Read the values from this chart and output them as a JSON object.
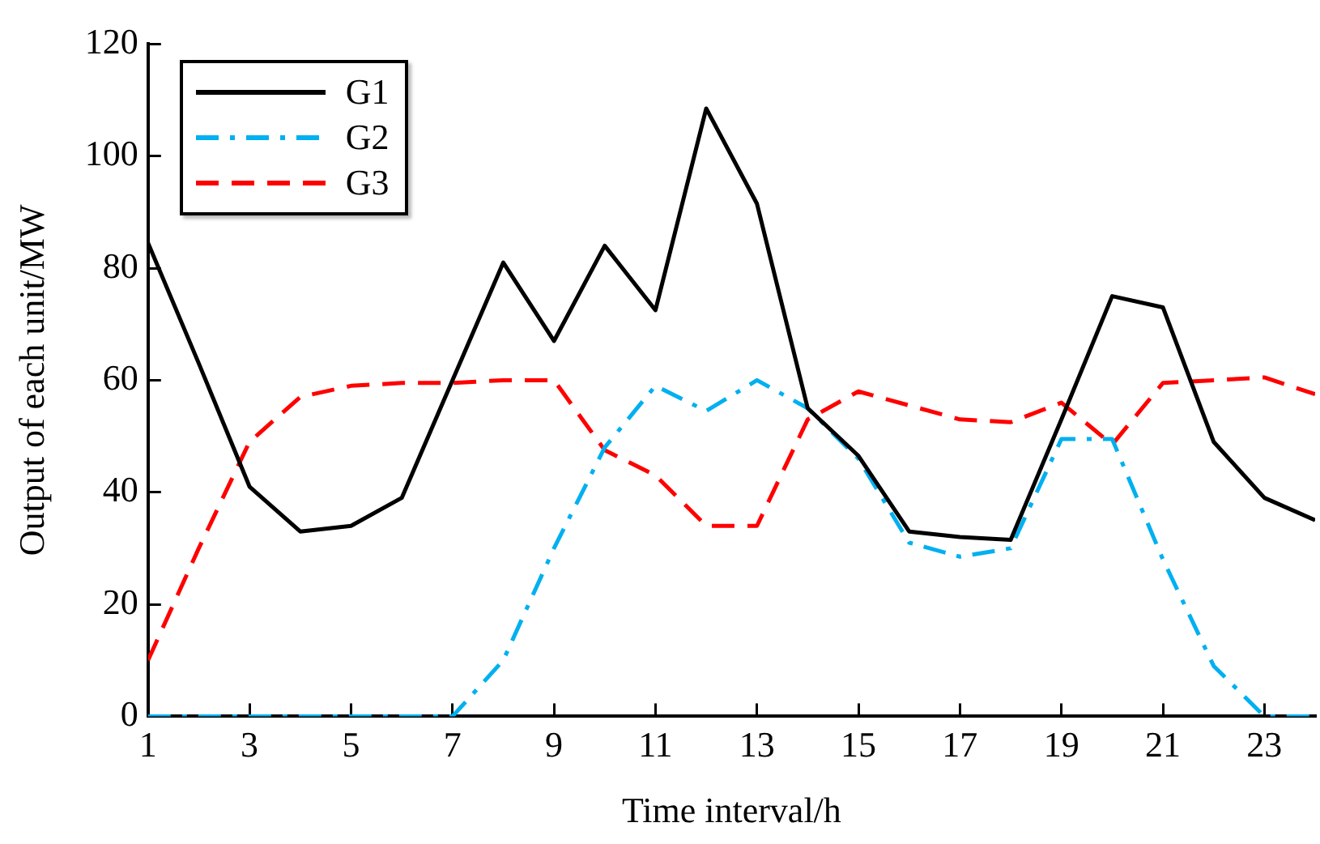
{
  "chart_data": {
    "type": "line",
    "xlabel": "Time interval/h",
    "ylabel": "Output of each unit/MW",
    "x": [
      1,
      2,
      3,
      4,
      5,
      6,
      7,
      8,
      9,
      10,
      11,
      12,
      13,
      14,
      15,
      16,
      17,
      18,
      19,
      20,
      21,
      22,
      23,
      24
    ],
    "series": [
      {
        "name": "G1",
        "color": "#000000",
        "line_style": "solid",
        "values": [
          84.5,
          63,
          41,
          33,
          34,
          39,
          60,
          81,
          67,
          84,
          72.5,
          108.5,
          91.5,
          55,
          46.5,
          33,
          32,
          31.5,
          53,
          75,
          73,
          49,
          39,
          35
        ]
      },
      {
        "name": "G2",
        "color": "#00b0f0",
        "line_style": "dashdot",
        "values": [
          0,
          0,
          0,
          0,
          0,
          0,
          0,
          10,
          30,
          48,
          59,
          54.5,
          60,
          55,
          46,
          31,
          28.5,
          30,
          49.5,
          49.5,
          28,
          9,
          0,
          0
        ]
      },
      {
        "name": "G3",
        "color": "#ff0000",
        "line_style": "dashed",
        "values": [
          10,
          30,
          49,
          57,
          59,
          59.5,
          59.5,
          60,
          60,
          47.5,
          43,
          34,
          34,
          53,
          58,
          55.5,
          53,
          52.5,
          56,
          48.5,
          59.5,
          60,
          60.5,
          57.5
        ]
      }
    ],
    "xlim": [
      1,
      24
    ],
    "xticks": [
      1,
      3,
      5,
      7,
      9,
      11,
      13,
      15,
      17,
      19,
      21,
      23
    ],
    "ylim": [
      0,
      120
    ],
    "yticks": [
      0,
      20,
      40,
      60,
      80,
      100,
      120
    ],
    "grid": false,
    "legend": "top left",
    "marker": "none"
  }
}
